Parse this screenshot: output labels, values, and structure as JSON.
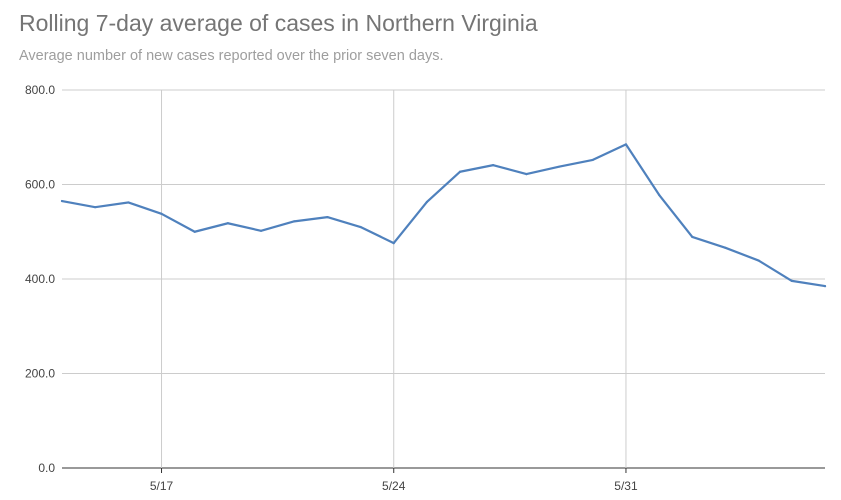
{
  "chart_data": {
    "type": "line",
    "title": "Rolling 7-day average of cases in Northern Virginia",
    "subtitle": "Average number of new cases reported over the prior seven days.",
    "xlabel": "",
    "ylabel": "",
    "ylim": [
      0,
      800
    ],
    "y_ticks": [
      0,
      200,
      400,
      600,
      800
    ],
    "y_tick_labels": [
      "0.0",
      "200.0",
      "400.0",
      "600.0",
      "800.0"
    ],
    "x_ticks": [
      {
        "index": 3,
        "label": "5/17"
      },
      {
        "index": 10,
        "label": "5/24"
      },
      {
        "index": 17,
        "label": "5/31"
      }
    ],
    "grid": true,
    "series": [
      {
        "name": "Rolling 7-day average",
        "color": "#4f81bd",
        "values": [
          565,
          552,
          562,
          538,
          500,
          518,
          502,
          522,
          531,
          510,
          476,
          563,
          627,
          641,
          622,
          638,
          652,
          685,
          578,
          489,
          466,
          439,
          396,
          385
        ]
      }
    ]
  }
}
